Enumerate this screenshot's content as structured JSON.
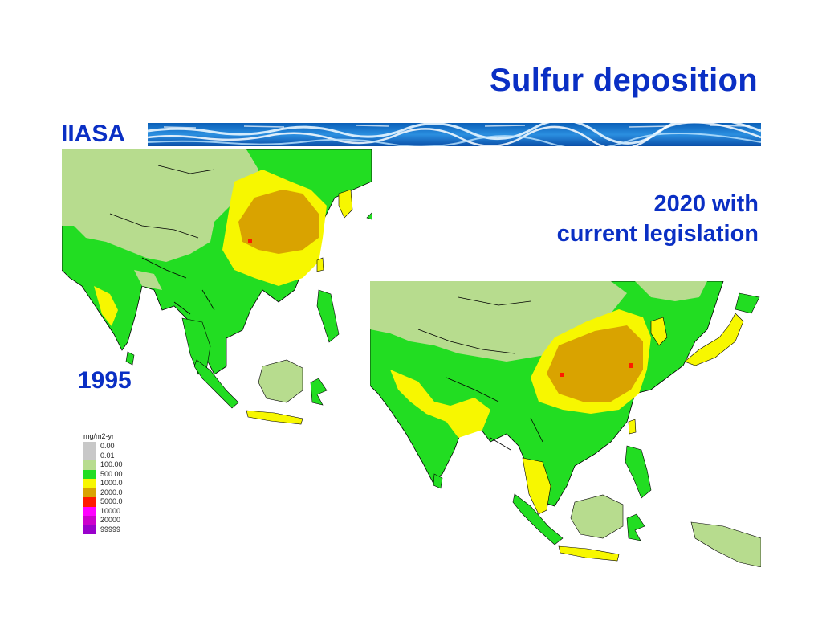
{
  "slide": {
    "title": "Sulfur deposition",
    "org": "IIASA",
    "scenario_label_line1": "2020 with",
    "scenario_label_line2": "current legislation",
    "year_label": "1995"
  },
  "legend": {
    "unit": "mg/m2-yr",
    "items": [
      {
        "label": "0.00",
        "color": "#c8c8c8"
      },
      {
        "label": "0.01",
        "color": "#c8c8c8"
      },
      {
        "label": "100.00",
        "color": "#b7dc8e"
      },
      {
        "label": "500.00",
        "color": "#22dd22"
      },
      {
        "label": "1000.0",
        "color": "#f7f700"
      },
      {
        "label": "2000.0",
        "color": "#d9a300"
      },
      {
        "label": "5000.0",
        "color": "#ff1a00"
      },
      {
        "label": "10000",
        "color": "#ff00ff"
      },
      {
        "label": "20000",
        "color": "#cc00cc"
      },
      {
        "label": "99999",
        "color": "#9900cc"
      }
    ]
  },
  "colors": {
    "text_blue": "#0a2fc4",
    "low": "#b7dc8e",
    "medium": "#22dd22",
    "high": "#f7f700",
    "very_high": "#d9a300",
    "extreme": "#ff1a00"
  },
  "icons": {
    "banner": "ocean-wave-banner"
  }
}
